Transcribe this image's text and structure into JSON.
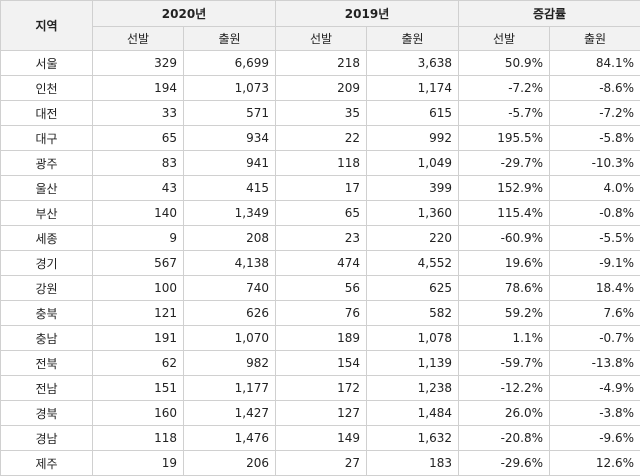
{
  "table": {
    "header": {
      "region": "지역",
      "groups": [
        "2020년",
        "2019년",
        "증감률"
      ],
      "subheaders": [
        "선발",
        "출원",
        "선발",
        "출원",
        "선발",
        "출원"
      ]
    },
    "rows": [
      [
        "서울",
        "329",
        "6,699",
        "218",
        "3,638",
        "50.9%",
        "84.1%"
      ],
      [
        "인천",
        "194",
        "1,073",
        "209",
        "1,174",
        "-7.2%",
        "-8.6%"
      ],
      [
        "대전",
        "33",
        "571",
        "35",
        "615",
        "-5.7%",
        "-7.2%"
      ],
      [
        "대구",
        "65",
        "934",
        "22",
        "992",
        "195.5%",
        "-5.8%"
      ],
      [
        "광주",
        "83",
        "941",
        "118",
        "1,049",
        "-29.7%",
        "-10.3%"
      ],
      [
        "울산",
        "43",
        "415",
        "17",
        "399",
        "152.9%",
        "4.0%"
      ],
      [
        "부산",
        "140",
        "1,349",
        "65",
        "1,360",
        "115.4%",
        "-0.8%"
      ],
      [
        "세종",
        "9",
        "208",
        "23",
        "220",
        "-60.9%",
        "-5.5%"
      ],
      [
        "경기",
        "567",
        "4,138",
        "474",
        "4,552",
        "19.6%",
        "-9.1%"
      ],
      [
        "강원",
        "100",
        "740",
        "56",
        "625",
        "78.6%",
        "18.4%"
      ],
      [
        "충북",
        "121",
        "626",
        "76",
        "582",
        "59.2%",
        "7.6%"
      ],
      [
        "충남",
        "191",
        "1,070",
        "189",
        "1,078",
        "1.1%",
        "-0.7%"
      ],
      [
        "전북",
        "62",
        "982",
        "154",
        "1,139",
        "-59.7%",
        "-13.8%"
      ],
      [
        "전남",
        "151",
        "1,177",
        "172",
        "1,238",
        "-12.2%",
        "-4.9%"
      ],
      [
        "경북",
        "160",
        "1,427",
        "127",
        "1,484",
        "26.0%",
        "-3.8%"
      ],
      [
        "경남",
        "118",
        "1,476",
        "149",
        "1,632",
        "-20.8%",
        "-9.6%"
      ],
      [
        "제주",
        "19",
        "206",
        "27",
        "183",
        "-29.6%",
        "12.6%"
      ]
    ]
  }
}
